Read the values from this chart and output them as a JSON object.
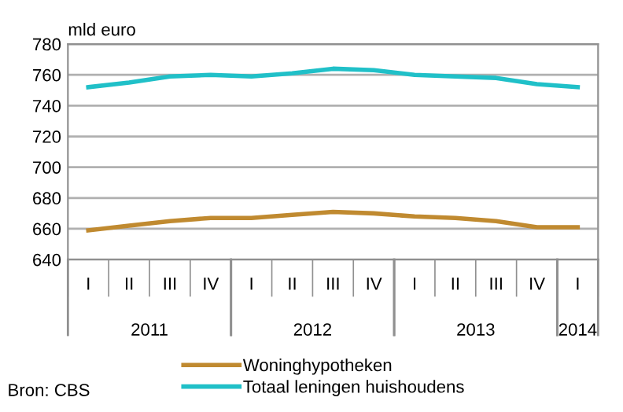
{
  "chart_data": {
    "type": "line",
    "ylabel": "mld euro",
    "categories": [
      "I",
      "II",
      "III",
      "IV",
      "I",
      "II",
      "III",
      "IV",
      "I",
      "II",
      "III",
      "IV",
      "I"
    ],
    "series": [
      {
        "name": "Woninghypotheken",
        "color": "#c08a30",
        "values": [
          659,
          662,
          665,
          667,
          667,
          669,
          671,
          670,
          668,
          667,
          665,
          661,
          661
        ]
      },
      {
        "name": "Totaal leningen huishoudens",
        "color": "#20c0c8",
        "values": [
          752,
          755,
          759,
          760,
          759,
          761,
          764,
          763,
          760,
          759,
          758,
          754,
          752
        ]
      }
    ],
    "ylim": [
      640,
      780
    ],
    "yticks": [
      640,
      660,
      680,
      700,
      720,
      740,
      760,
      780
    ],
    "grid": "y",
    "legend": "bottom",
    "marker": "none",
    "line_style": "solid",
    "annotations": [
      "2011",
      "2012",
      "2013",
      "2014",
      "Bron: CBS"
    ]
  }
}
